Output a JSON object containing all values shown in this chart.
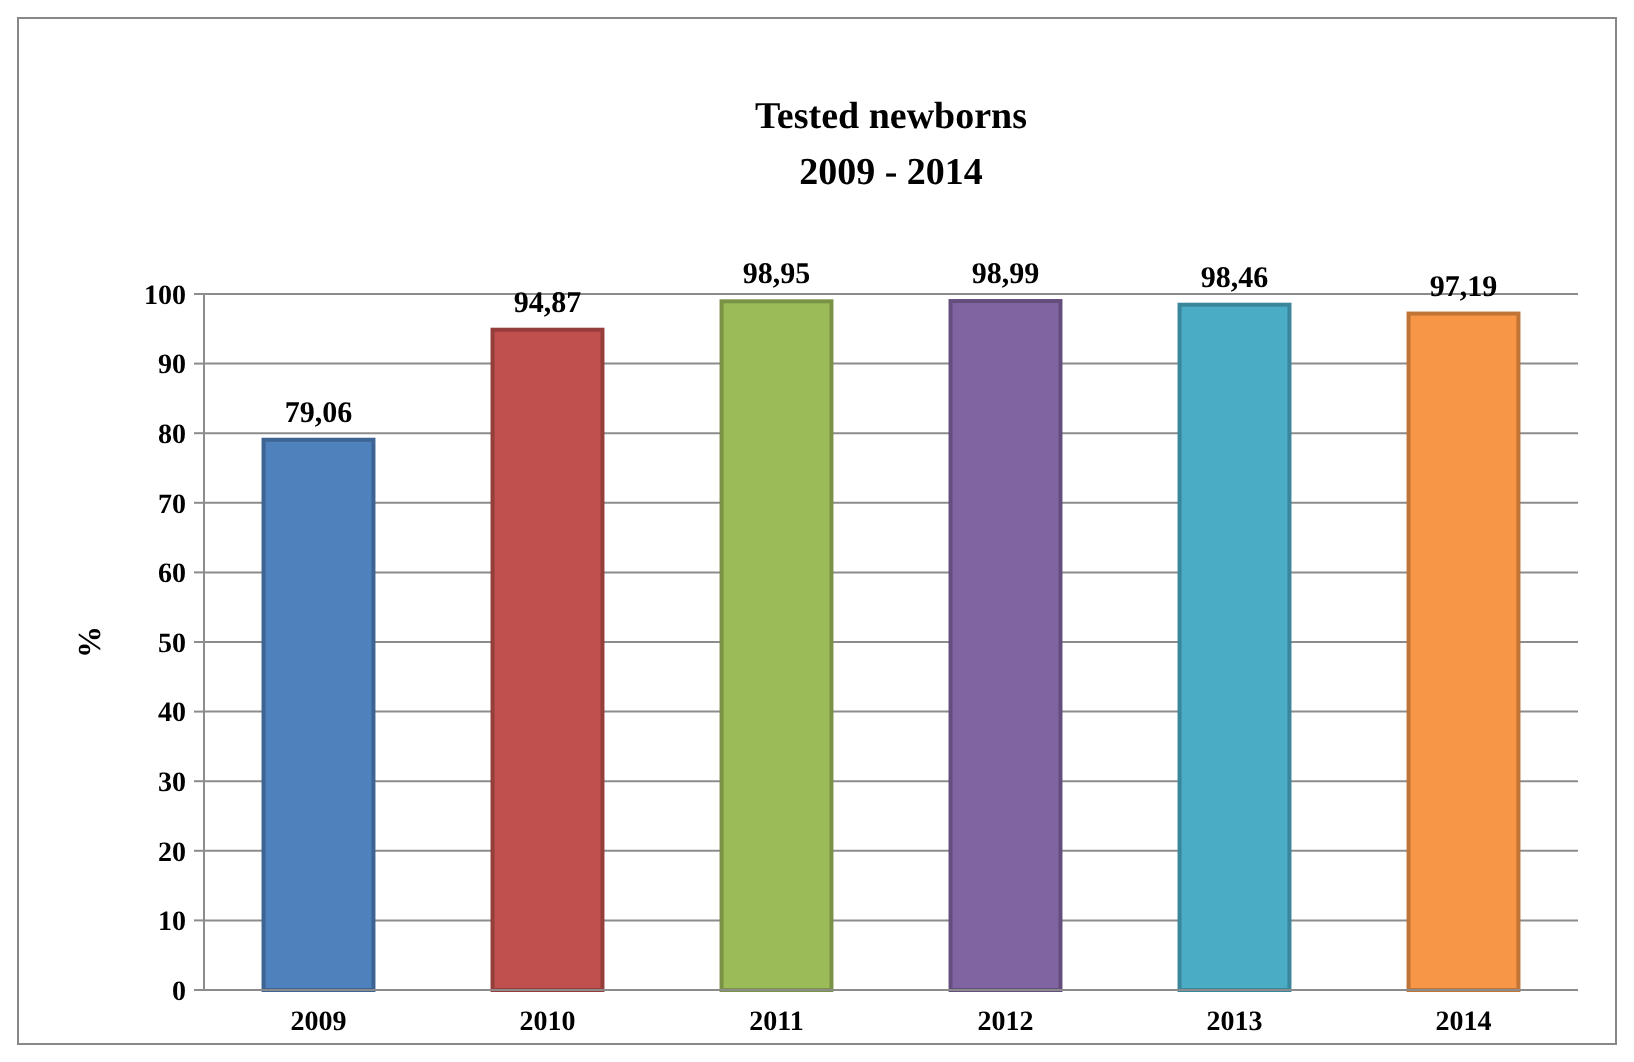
{
  "chart_data": {
    "type": "bar",
    "title": "Tested newborns\n2009 - 2014",
    "ylabel": "%",
    "categories": [
      "2009",
      "2010",
      "2011",
      "2012",
      "2013",
      "2014"
    ],
    "values": [
      79.06,
      94.87,
      98.95,
      98.99,
      98.46,
      97.19
    ],
    "value_labels": [
      "79,06",
      "94,87",
      "98,95",
      "98,99",
      "98,46",
      "97,19"
    ],
    "colors": [
      "#4f81bd",
      "#c0504d",
      "#9bbb59",
      "#8064a2",
      "#4bacc6",
      "#f79646"
    ],
    "ylim": [
      0,
      100
    ],
    "yticks": [
      0,
      10,
      20,
      30,
      40,
      50,
      60,
      70,
      80,
      90,
      100
    ],
    "grid": "y"
  }
}
